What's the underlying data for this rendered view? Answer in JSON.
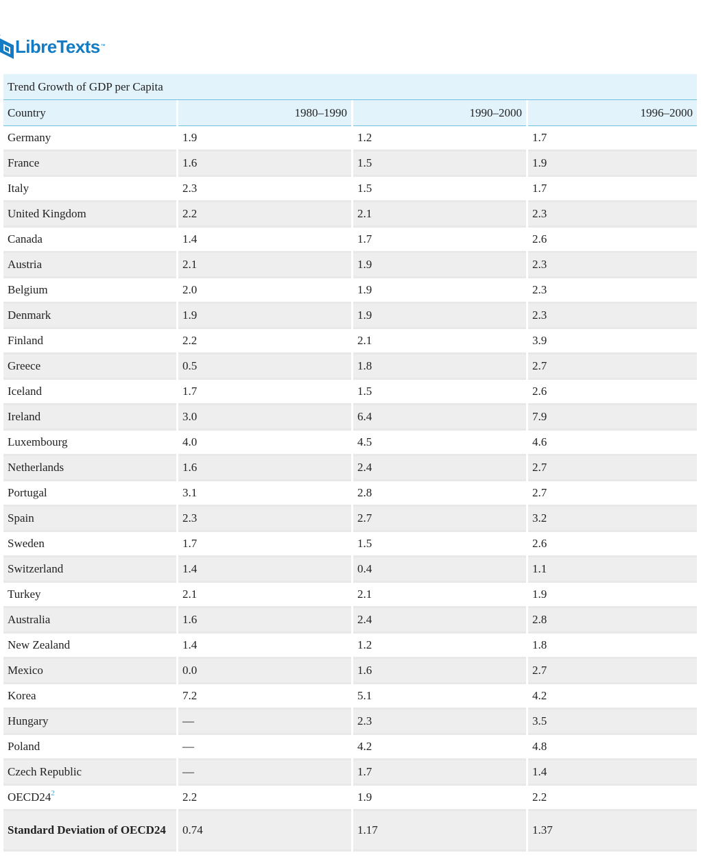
{
  "logo": {
    "text": "LibreTexts",
    "tm": "™",
    "color": "#127bc4"
  },
  "table": {
    "caption": "Trend Growth of GDP per Capita",
    "headers": [
      "Country",
      "1980–1990",
      "1990–2000",
      "1996–2000"
    ],
    "rows": [
      [
        "Germany",
        "1.9",
        "1.2",
        "1.7"
      ],
      [
        "France",
        "1.6",
        "1.5",
        "1.9"
      ],
      [
        "Italy",
        "2.3",
        "1.5",
        "1.7"
      ],
      [
        "United Kingdom",
        "2.2",
        "2.1",
        "2.3"
      ],
      [
        "Canada",
        "1.4",
        "1.7",
        "2.6"
      ],
      [
        "Austria",
        "2.1",
        "1.9",
        "2.3"
      ],
      [
        "Belgium",
        "2.0",
        "1.9",
        "2.3"
      ],
      [
        "Denmark",
        "1.9",
        "1.9",
        "2.3"
      ],
      [
        "Finland",
        "2.2",
        "2.1",
        "3.9"
      ],
      [
        "Greece",
        "0.5",
        "1.8",
        "2.7"
      ],
      [
        "Iceland",
        "1.7",
        "1.5",
        "2.6"
      ],
      [
        "Ireland",
        "3.0",
        "6.4",
        "7.9"
      ],
      [
        "Luxembourg",
        "4.0",
        "4.5",
        "4.6"
      ],
      [
        "Netherlands",
        "1.6",
        "2.4",
        "2.7"
      ],
      [
        "Portugal",
        "3.1",
        "2.8",
        "2.7"
      ],
      [
        "Spain",
        "2.3",
        "2.7",
        "3.2"
      ],
      [
        "Sweden",
        "1.7",
        "1.5",
        "2.6"
      ],
      [
        "Switzerland",
        "1.4",
        "0.4",
        "1.1"
      ],
      [
        "Turkey",
        "2.1",
        "2.1",
        "1.9"
      ],
      [
        "Australia",
        "1.6",
        "2.4",
        "2.8"
      ],
      [
        "New Zealand",
        "1.4",
        "1.2",
        "1.8"
      ],
      [
        "Mexico",
        "0.0",
        "1.6",
        "2.7"
      ],
      [
        "Korea",
        "7.2",
        "5.1",
        "4.2"
      ],
      [
        "Hungary",
        "—",
        "2.3",
        "3.5"
      ],
      [
        "Poland",
        "—",
        "4.2",
        "4.8"
      ],
      [
        "Czech Republic",
        "—",
        "1.7",
        "1.4"
      ],
      [
        "OECD24",
        "2.2",
        "1.9",
        "2.2"
      ]
    ],
    "footnote_marker": "2",
    "summary_row": [
      "Standard Deviation of OECD24",
      "0.74",
      "1.17",
      "1.37"
    ]
  }
}
